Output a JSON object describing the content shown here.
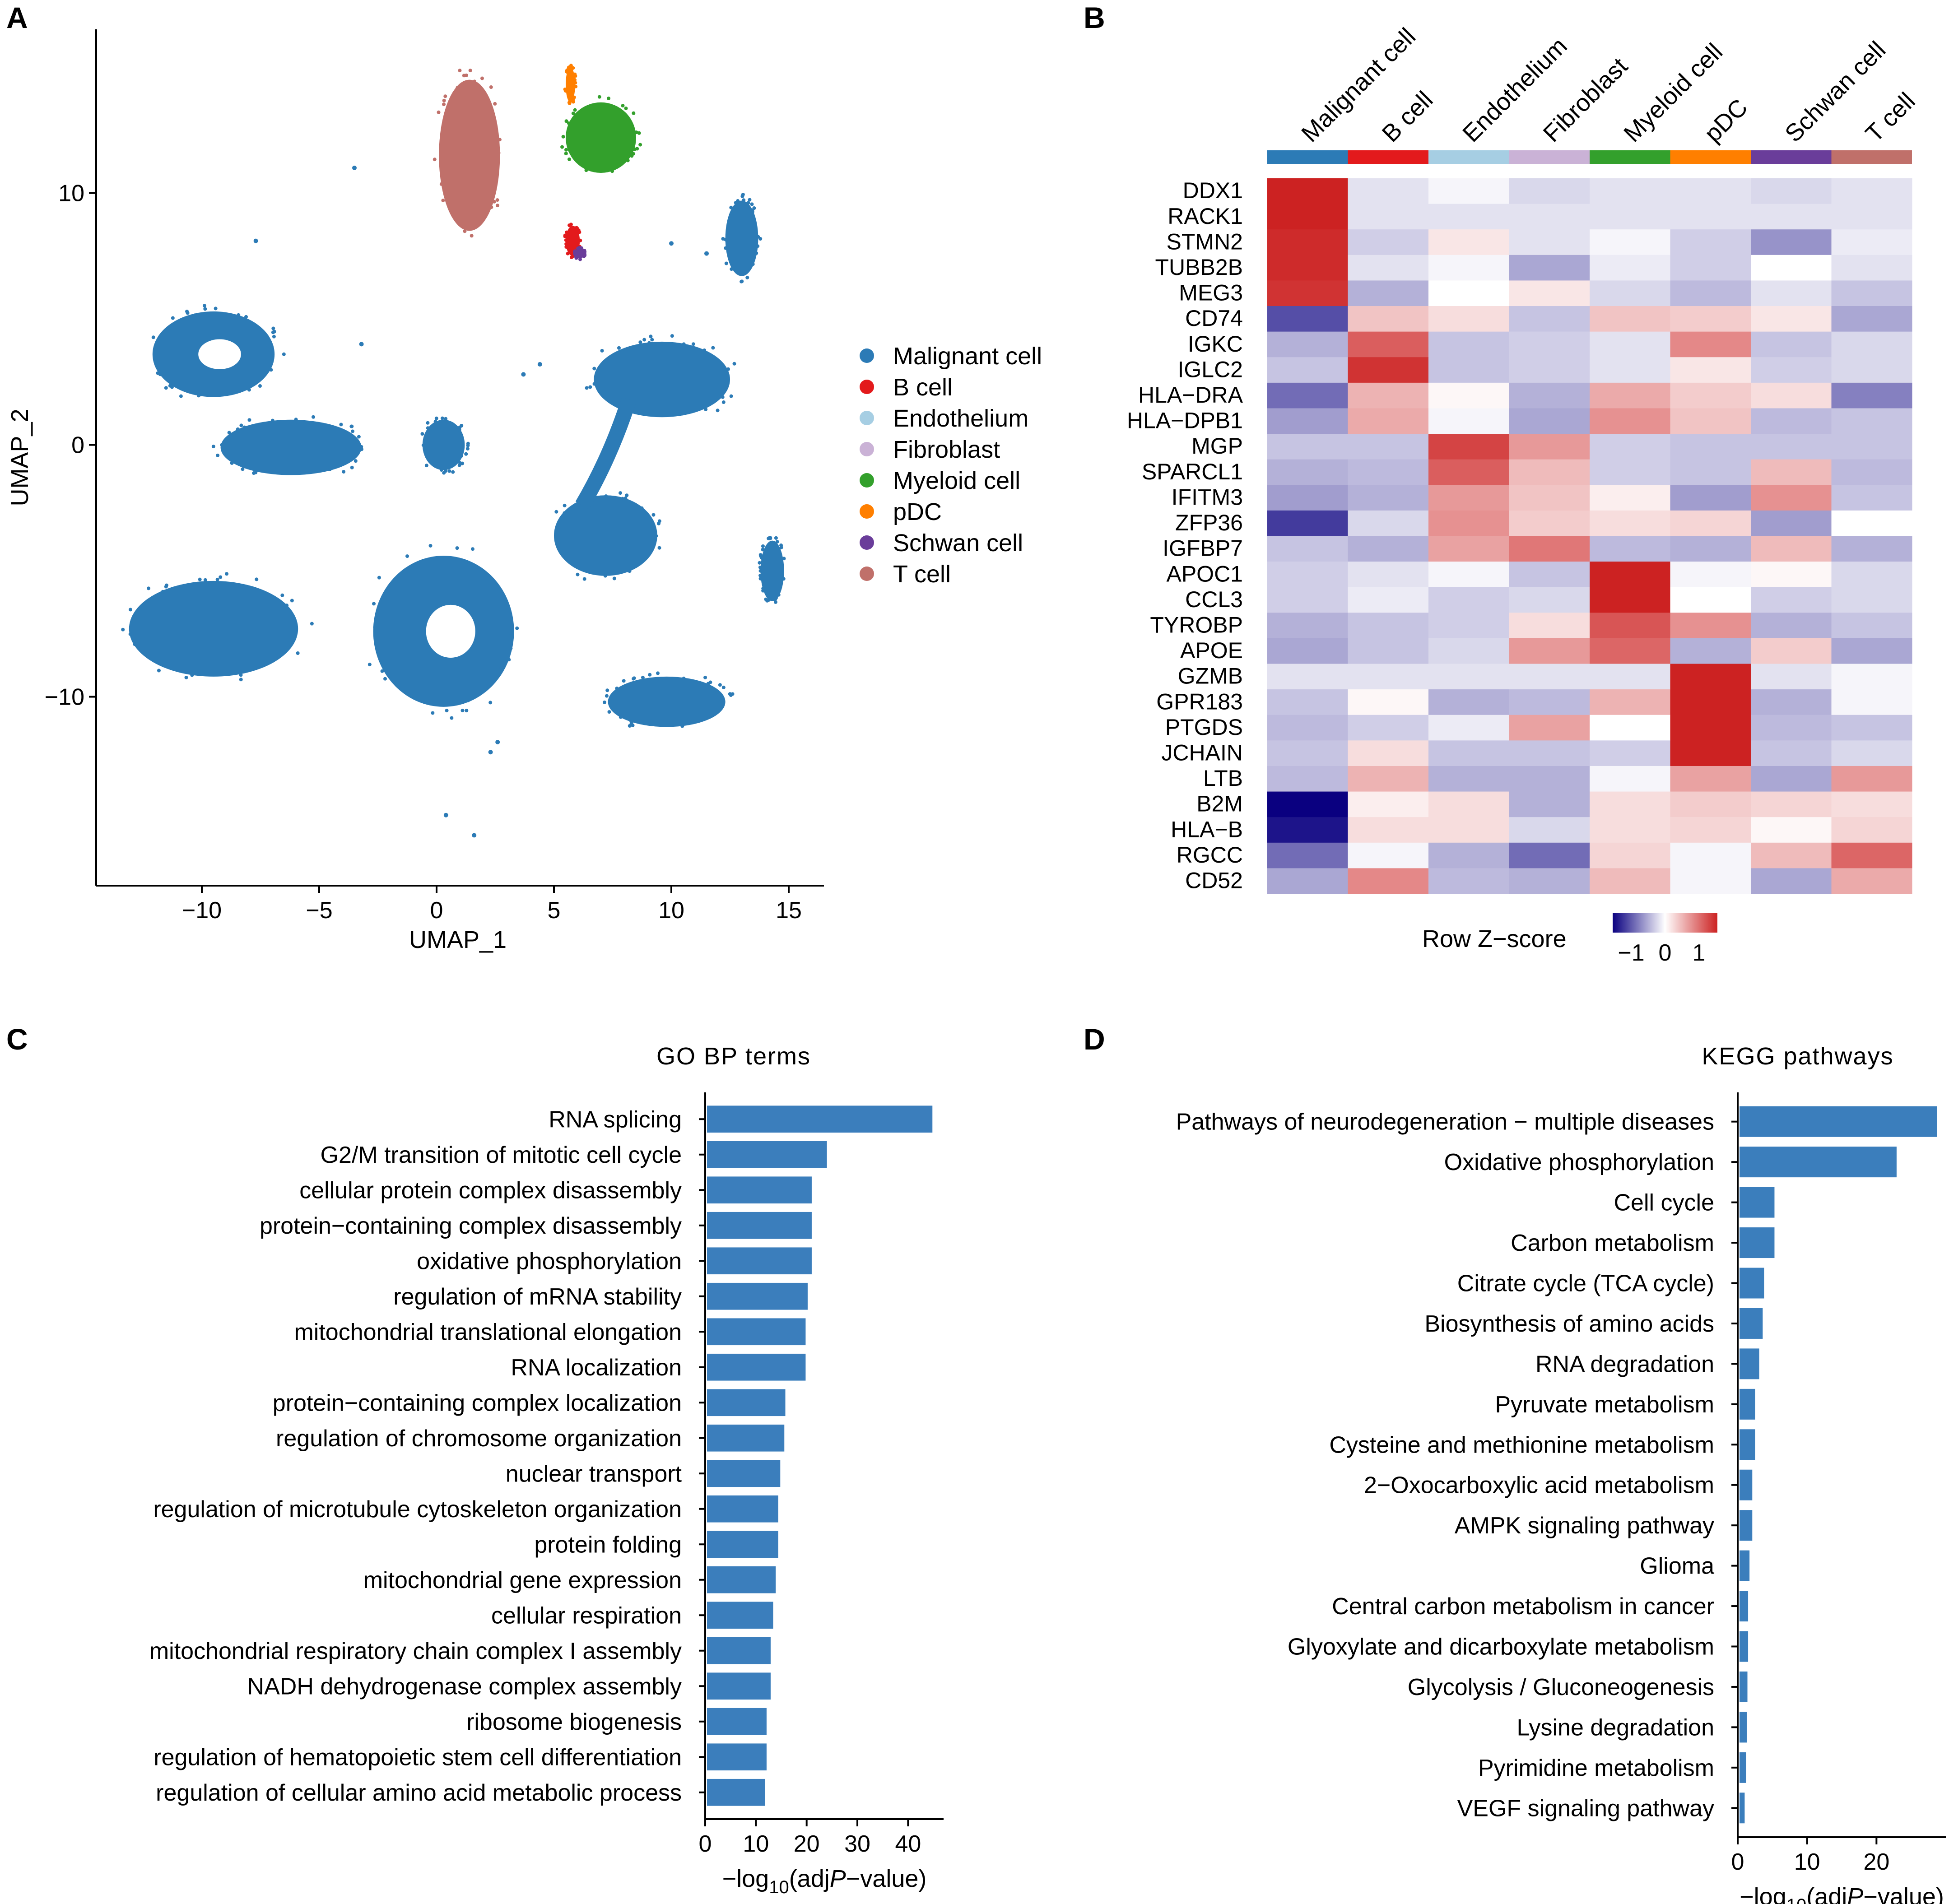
{
  "panels": {
    "A": "A",
    "B": "B",
    "C": "C",
    "D": "D"
  },
  "chart_data": [
    {
      "type": "scatter",
      "panel": "A",
      "xlabel": "UMAP_1",
      "ylabel": "UMAP_2",
      "xlim": [
        -14.5,
        16.5
      ],
      "ylim": [
        -17.5,
        16.5
      ],
      "xticks": [
        -10,
        -5,
        0,
        5,
        10,
        15
      ],
      "yticks": [
        -10,
        0,
        10
      ],
      "xtick_labels": [
        "−10",
        "−5",
        "0",
        "5",
        "10",
        "15"
      ],
      "ytick_labels": [
        "−10",
        "0",
        "10"
      ],
      "grid": false,
      "legend_position": "right",
      "legend": [
        {
          "name": "Malignant cell",
          "color": "#2C7BB6"
        },
        {
          "name": "B cell",
          "color": "#E31A1C"
        },
        {
          "name": "Endothelium",
          "color": "#A6CEE3"
        },
        {
          "name": "Fibroblast",
          "color": "#CAB2D6"
        },
        {
          "name": "Myeloid cell",
          "color": "#33A02C"
        },
        {
          "name": "pDC",
          "color": "#FF7F00"
        },
        {
          "name": "Schwan cell",
          "color": "#6A3D9A"
        },
        {
          "name": "T cell",
          "color": "#C0706A"
        }
      ],
      "clusters": [
        {
          "cell_type": "Malignant cell",
          "cx": -9.5,
          "cy": 3.6,
          "rx": 2.6,
          "ry": 1.7,
          "hole": true
        },
        {
          "cell_type": "Malignant cell",
          "cx": -6.2,
          "cy": -0.1,
          "rx": 3.0,
          "ry": 1.1,
          "hole": false
        },
        {
          "cell_type": "Malignant cell",
          "cx": 0.3,
          "cy": 0.0,
          "rx": 0.9,
          "ry": 1.0,
          "hole": false
        },
        {
          "cell_type": "Malignant cell",
          "cx": -9.5,
          "cy": -7.3,
          "rx": 3.6,
          "ry": 1.9,
          "hole": false
        },
        {
          "cell_type": "Malignant cell",
          "cx": 0.3,
          "cy": -7.4,
          "rx": 3.0,
          "ry": 3.0,
          "hole": true
        },
        {
          "cell_type": "Malignant cell",
          "cx": 9.8,
          "cy": -10.2,
          "rx": 2.5,
          "ry": 1.0,
          "hole": false
        },
        {
          "cell_type": "Malignant cell",
          "cx": 7.2,
          "cy": -3.6,
          "rx": 2.2,
          "ry": 1.6,
          "hole": false
        },
        {
          "cell_type": "Malignant cell",
          "cx": 9.6,
          "cy": 2.6,
          "rx": 2.9,
          "ry": 1.5,
          "hole": false
        },
        {
          "cell_type": "Malignant cell",
          "cx": 13.0,
          "cy": 8.2,
          "rx": 0.7,
          "ry": 1.5,
          "hole": false
        },
        {
          "cell_type": "Malignant cell",
          "cx": 14.3,
          "cy": -5.0,
          "rx": 0.5,
          "ry": 1.2,
          "hole": false
        },
        {
          "cell_type": "T cell",
          "cx": 1.4,
          "cy": 11.5,
          "rx": 1.3,
          "ry": 3.0,
          "hole": false
        },
        {
          "cell_type": "Myeloid cell",
          "cx": 7.0,
          "cy": 12.2,
          "rx": 1.5,
          "ry": 1.4,
          "hole": false
        },
        {
          "cell_type": "pDC",
          "cx": 5.7,
          "cy": 14.3,
          "rx": 0.2,
          "ry": 0.7,
          "hole": false
        },
        {
          "cell_type": "B cell",
          "cx": 5.8,
          "cy": 8.1,
          "rx": 0.3,
          "ry": 0.6,
          "hole": false
        },
        {
          "cell_type": "Schwan cell",
          "cx": 6.1,
          "cy": 7.6,
          "rx": 0.2,
          "ry": 0.2,
          "hole": false
        }
      ]
    },
    {
      "type": "heatmap",
      "panel": "B",
      "legend_title": "Row Z−score",
      "legend_ticks": [
        "−1",
        "0",
        "1"
      ],
      "colormap": {
        "low": "#0a0080",
        "mid": "#ffffff",
        "high": "#cc2222"
      },
      "columns": [
        {
          "name": "Malignant cell",
          "color": "#2C7BB6"
        },
        {
          "name": "B cell",
          "color": "#E31A1C"
        },
        {
          "name": "Endothelium",
          "color": "#A6CEE3"
        },
        {
          "name": "Fibroblast",
          "color": "#CAB2D6"
        },
        {
          "name": "Myeloid cell",
          "color": "#33A02C"
        },
        {
          "name": "pDC",
          "color": "#FF7F00"
        },
        {
          "name": "Schwan cell",
          "color": "#6A3D9A"
        },
        {
          "name": "T cell",
          "color": "#C0706A"
        }
      ],
      "rows": [
        "DDX1",
        "RACK1",
        "STMN2",
        "TUBB2B",
        "MEG3",
        "CD74",
        "IGKC",
        "IGLC2",
        "HLA−DRA",
        "HLA−DPB1",
        "MGP",
        "SPARCL1",
        "IFITM3",
        "ZFP36",
        "IGFBP7",
        "APOC1",
        "CCL3",
        "TYROBP",
        "APOE",
        "GZMB",
        "GPR183",
        "PTGDS",
        "JCHAIN",
        "LTB",
        "B2M",
        "HLA−B",
        "RGCC",
        "CD52"
      ],
      "values": [
        [
          2.6,
          -0.3,
          -0.1,
          -0.4,
          -0.3,
          -0.3,
          -0.4,
          -0.3
        ],
        [
          2.6,
          -0.3,
          -0.3,
          -0.3,
          -0.3,
          -0.3,
          -0.3,
          -0.3
        ],
        [
          2.5,
          -0.5,
          0.3,
          -0.3,
          -0.1,
          -0.5,
          -1.1,
          -0.2
        ],
        [
          2.5,
          -0.3,
          -0.1,
          -0.9,
          -0.2,
          -0.5,
          0.0,
          -0.3
        ],
        [
          2.4,
          -0.8,
          0.0,
          0.3,
          -0.4,
          -0.7,
          -0.3,
          -0.6
        ],
        [
          -1.8,
          0.7,
          0.4,
          -0.6,
          0.7,
          0.6,
          0.3,
          -0.9
        ],
        [
          -0.8,
          1.9,
          -0.6,
          -0.5,
          -0.3,
          1.4,
          -0.6,
          -0.4
        ],
        [
          -0.6,
          2.4,
          -0.6,
          -0.5,
          -0.3,
          0.3,
          -0.5,
          -0.4
        ],
        [
          -1.5,
          0.9,
          0.1,
          -0.8,
          1.0,
          0.6,
          0.4,
          -1.3
        ],
        [
          -1.0,
          1.0,
          -0.1,
          -0.9,
          1.3,
          0.7,
          -0.7,
          -0.6
        ],
        [
          -0.6,
          -0.6,
          2.2,
          1.2,
          -0.5,
          -0.6,
          -0.6,
          -0.6
        ],
        [
          -0.8,
          -0.7,
          1.9,
          0.8,
          -0.5,
          -0.6,
          0.8,
          -0.7
        ],
        [
          -1.0,
          -0.8,
          1.2,
          0.7,
          0.2,
          -1.0,
          1.3,
          -0.6
        ],
        [
          -2.0,
          -0.4,
          1.3,
          0.6,
          0.4,
          0.5,
          -1.0,
          0.0
        ],
        [
          -0.6,
          -0.8,
          1.1,
          1.6,
          -0.7,
          -0.8,
          0.8,
          -0.8
        ],
        [
          -0.5,
          -0.3,
          -0.1,
          -0.6,
          2.6,
          -0.1,
          0.1,
          -0.4
        ],
        [
          -0.5,
          -0.2,
          -0.5,
          -0.4,
          2.6,
          0.0,
          -0.5,
          -0.4
        ],
        [
          -0.8,
          -0.6,
          -0.5,
          0.4,
          2.0,
          1.3,
          -0.8,
          -0.6
        ],
        [
          -0.9,
          -0.6,
          -0.4,
          1.2,
          1.8,
          -0.8,
          0.6,
          -0.9
        ],
        [
          -0.3,
          -0.3,
          -0.3,
          -0.3,
          -0.3,
          2.6,
          -0.3,
          -0.1
        ],
        [
          -0.6,
          0.1,
          -0.8,
          -0.7,
          0.9,
          2.6,
          -0.8,
          -0.1
        ],
        [
          -0.7,
          -0.5,
          -0.2,
          1.1,
          0.0,
          2.6,
          -0.7,
          -0.6
        ],
        [
          -0.6,
          0.4,
          -0.6,
          -0.6,
          -0.5,
          2.6,
          -0.6,
          -0.4
        ],
        [
          -0.7,
          0.9,
          -0.8,
          -0.8,
          -0.1,
          1.1,
          -0.9,
          1.2
        ],
        [
          -2.6,
          0.2,
          0.4,
          -0.8,
          0.4,
          0.6,
          0.5,
          0.4
        ],
        [
          -2.4,
          0.4,
          0.4,
          -0.4,
          0.4,
          0.5,
          0.1,
          0.5
        ],
        [
          -1.5,
          -0.1,
          -0.8,
          -1.5,
          0.5,
          -0.1,
          0.8,
          1.8
        ],
        [
          -0.9,
          1.4,
          -0.7,
          -0.8,
          0.8,
          -0.1,
          -0.9,
          1.0
        ]
      ]
    },
    {
      "type": "bar",
      "panel": "C",
      "orientation": "horizontal",
      "title": "GO BP terms",
      "xlabel": "−log10(adjP−value)",
      "xlabel_parts": {
        "pre": "−log",
        "sub": "10",
        "mid": "(adj",
        "italic": "P",
        "post": "−value)"
      },
      "xlim": [
        0,
        47
      ],
      "xticks": [
        0,
        10,
        20,
        30,
        40
      ],
      "bar_color": "#3B7EBC",
      "categories": [
        "RNA splicing",
        "G2/M transition of mitotic cell cycle",
        "cellular protein complex disassembly",
        "protein−containing complex disassembly",
        "oxidative phosphorylation",
        "regulation of mRNA stability",
        "mitochondrial translational elongation",
        "RNA localization",
        "protein−containing complex localization",
        "regulation of chromosome organization",
        "nuclear transport",
        "regulation of microtubule cytoskeleton organization",
        "protein folding",
        "mitochondrial gene expression",
        "cellular respiration",
        "mitochondrial respiratory chain complex I assembly",
        "NADH dehydrogenase complex assembly",
        "ribosome biogenesis",
        "regulation of hematopoietic stem cell differentiation",
        "regulation of cellular amino acid metabolic process"
      ],
      "values": [
        44.8,
        24.0,
        21.0,
        21.0,
        21.0,
        20.2,
        19.8,
        19.8,
        15.8,
        15.6,
        14.8,
        14.4,
        14.4,
        13.9,
        13.4,
        12.9,
        12.9,
        12.1,
        12.1,
        11.8
      ]
    },
    {
      "type": "bar",
      "panel": "D",
      "orientation": "horizontal",
      "title": "KEGG pathways",
      "xlabel": "−log10(adjP−value)",
      "xlabel_parts": {
        "pre": "−log",
        "sub": "10",
        "mid": "(adj",
        "italic": "P",
        "post": "−value)"
      },
      "xlim": [
        0,
        30
      ],
      "xticks": [
        0,
        10,
        20
      ],
      "bar_color": "#3B7EBC",
      "categories": [
        "Pathways of neurodegeneration − multiple diseases",
        "Oxidative phosphorylation",
        "Cell cycle",
        "Carbon metabolism",
        "Citrate cycle (TCA cycle)",
        "Biosynthesis of amino acids",
        "RNA degradation",
        "Pyruvate metabolism",
        "Cysteine and methionine metabolism",
        "2−Oxocarboxylic acid metabolism",
        "AMPK signaling pathway",
        "Glioma",
        "Central carbon metabolism in cancer",
        "Glyoxylate and dicarboxylate metabolism",
        "Glycolysis / Gluconeogenesis",
        "Lysine degradation",
        "Pyrimidine metabolism",
        "VEGF signaling pathway"
      ],
      "values": [
        28.7,
        22.9,
        5.3,
        5.3,
        3.8,
        3.6,
        3.1,
        2.5,
        2.5,
        2.1,
        2.1,
        1.7,
        1.5,
        1.5,
        1.4,
        1.3,
        1.2,
        1.0
      ]
    }
  ]
}
